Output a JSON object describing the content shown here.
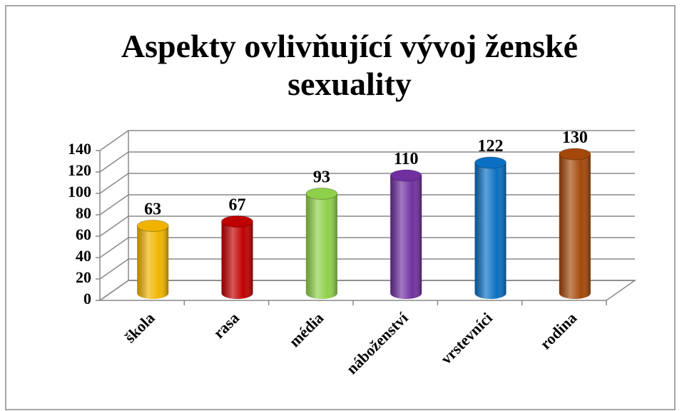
{
  "chart_data": {
    "type": "bar",
    "title": [
      "Aspekty ovlivňující vývoj ženské",
      "sexuality"
    ],
    "categories": [
      "škola",
      "rasa",
      "média",
      "náboženství",
      "vrstevníci",
      "rodina"
    ],
    "values": [
      63,
      67,
      93,
      110,
      122,
      130
    ],
    "colors": [
      "#f0b400",
      "#c00000",
      "#8fd04a",
      "#7030a0",
      "#0a6fc2",
      "#a3480a"
    ],
    "ylim": [
      0,
      140
    ],
    "yticks": [
      0,
      20,
      40,
      60,
      80,
      100,
      120,
      140
    ],
    "grid": true
  }
}
